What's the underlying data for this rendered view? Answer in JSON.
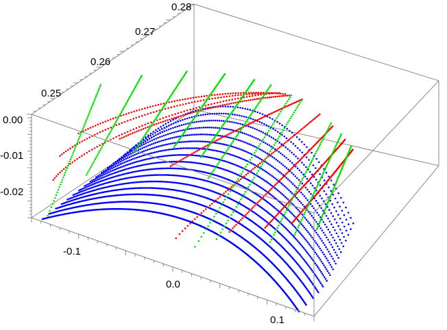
{
  "chart_data": {
    "type": "scatter",
    "title": "",
    "xlabel": "",
    "ylabel": "",
    "zlabel": "",
    "grid": false,
    "legend": "none",
    "axes": {
      "x": {
        "range": [
          -0.12,
          0.12
        ],
        "ticks": [
          "-0.1",
          "0.0",
          "0.1"
        ]
      },
      "y": {
        "range": [
          0.245,
          0.28
        ],
        "ticks": [
          "0.25",
          "0.26",
          "0.27",
          "0.28"
        ]
      },
      "z": {
        "range": [
          -0.03,
          0.0
        ],
        "ticks": [
          "0.00",
          "-0.01",
          "-0.02"
        ]
      }
    },
    "series": [
      {
        "color": "#0000ff",
        "kind": "dotted-arcs",
        "arcs": [
          {
            "a": 0.4,
            "q": 1.0,
            "steps": 300
          },
          {
            "a": 0.55,
            "q": 0.93,
            "steps": 260
          },
          {
            "a": 0.7,
            "q": 0.86,
            "steps": 240
          },
          {
            "a": 0.8,
            "q": 0.8,
            "steps": 220
          },
          {
            "a": 0.88,
            "q": 0.74,
            "steps": 200
          },
          {
            "a": 0.93,
            "q": 0.68,
            "steps": 190
          },
          {
            "a": 0.96,
            "q": 0.62,
            "steps": 180
          },
          {
            "a": 0.98,
            "q": 0.56,
            "steps": 170
          },
          {
            "a": 0.99,
            "q": 0.5,
            "steps": 160
          },
          {
            "a": 1.0,
            "q": 0.44,
            "steps": 150
          },
          {
            "a": 1.0,
            "q": 0.38,
            "steps": 140
          },
          {
            "a": 1.0,
            "q": 0.32,
            "steps": 130
          },
          {
            "a": 1.0,
            "q": 0.26,
            "steps": 120
          },
          {
            "a": 1.0,
            "q": 0.2,
            "steps": 110
          },
          {
            "a": 1.0,
            "q": 0.14,
            "steps": 100
          },
          {
            "a": 1.0,
            "q": 0.08,
            "steps": 90
          }
        ]
      },
      {
        "color": "#ff0000",
        "kind": "dotted-ridges",
        "ridges": [
          {
            "from": [
              0.0,
              0.22
            ],
            "to": [
              0.6,
              0.95
            ]
          },
          {
            "from": [
              0.0,
              0.4
            ],
            "to": [
              0.62,
              0.97
            ]
          },
          {
            "from": [
              0.05,
              0.55
            ],
            "to": [
              0.64,
              0.98
            ]
          },
          {
            "from": [
              0.22,
              0.45
            ],
            "to": [
              0.66,
              0.99
            ]
          },
          {
            "from": [
              0.45,
              0.3
            ],
            "to": [
              0.7,
              1.0
            ]
          },
          {
            "from": [
              0.6,
              0.0
            ],
            "to": [
              0.78,
              0.98
            ]
          },
          {
            "from": [
              0.72,
              0.1
            ],
            "to": [
              0.84,
              0.97
            ]
          },
          {
            "from": [
              0.8,
              0.2
            ],
            "to": [
              0.9,
              0.96
            ]
          },
          {
            "from": [
              0.86,
              0.3
            ],
            "to": [
              0.94,
              0.95
            ]
          }
        ]
      },
      {
        "color": "#00e000",
        "kind": "dotted-cross-sections",
        "sections": [
          {
            "at": 0.06,
            "from": 0.0,
            "to": 0.97
          },
          {
            "at": 0.17,
            "from": 0.2,
            "to": 0.99
          },
          {
            "at": 0.3,
            "from": 0.35,
            "to": 1.0
          },
          {
            "at": 0.42,
            "from": 0.42,
            "to": 1.0
          },
          {
            "at": 0.52,
            "from": 0.4,
            "to": 1.0
          },
          {
            "at": 0.58,
            "from": 0.3,
            "to": 1.0
          },
          {
            "at": 0.66,
            "from": 0.0,
            "to": 0.99
          },
          {
            "at": 0.7,
            "from": 0.05,
            "to": 0.99
          },
          {
            "at": 0.83,
            "from": 0.15,
            "to": 0.98
          },
          {
            "at": 0.88,
            "from": 0.25,
            "to": 0.97
          },
          {
            "at": 0.93,
            "from": 0.35,
            "to": 0.96
          }
        ]
      }
    ]
  }
}
